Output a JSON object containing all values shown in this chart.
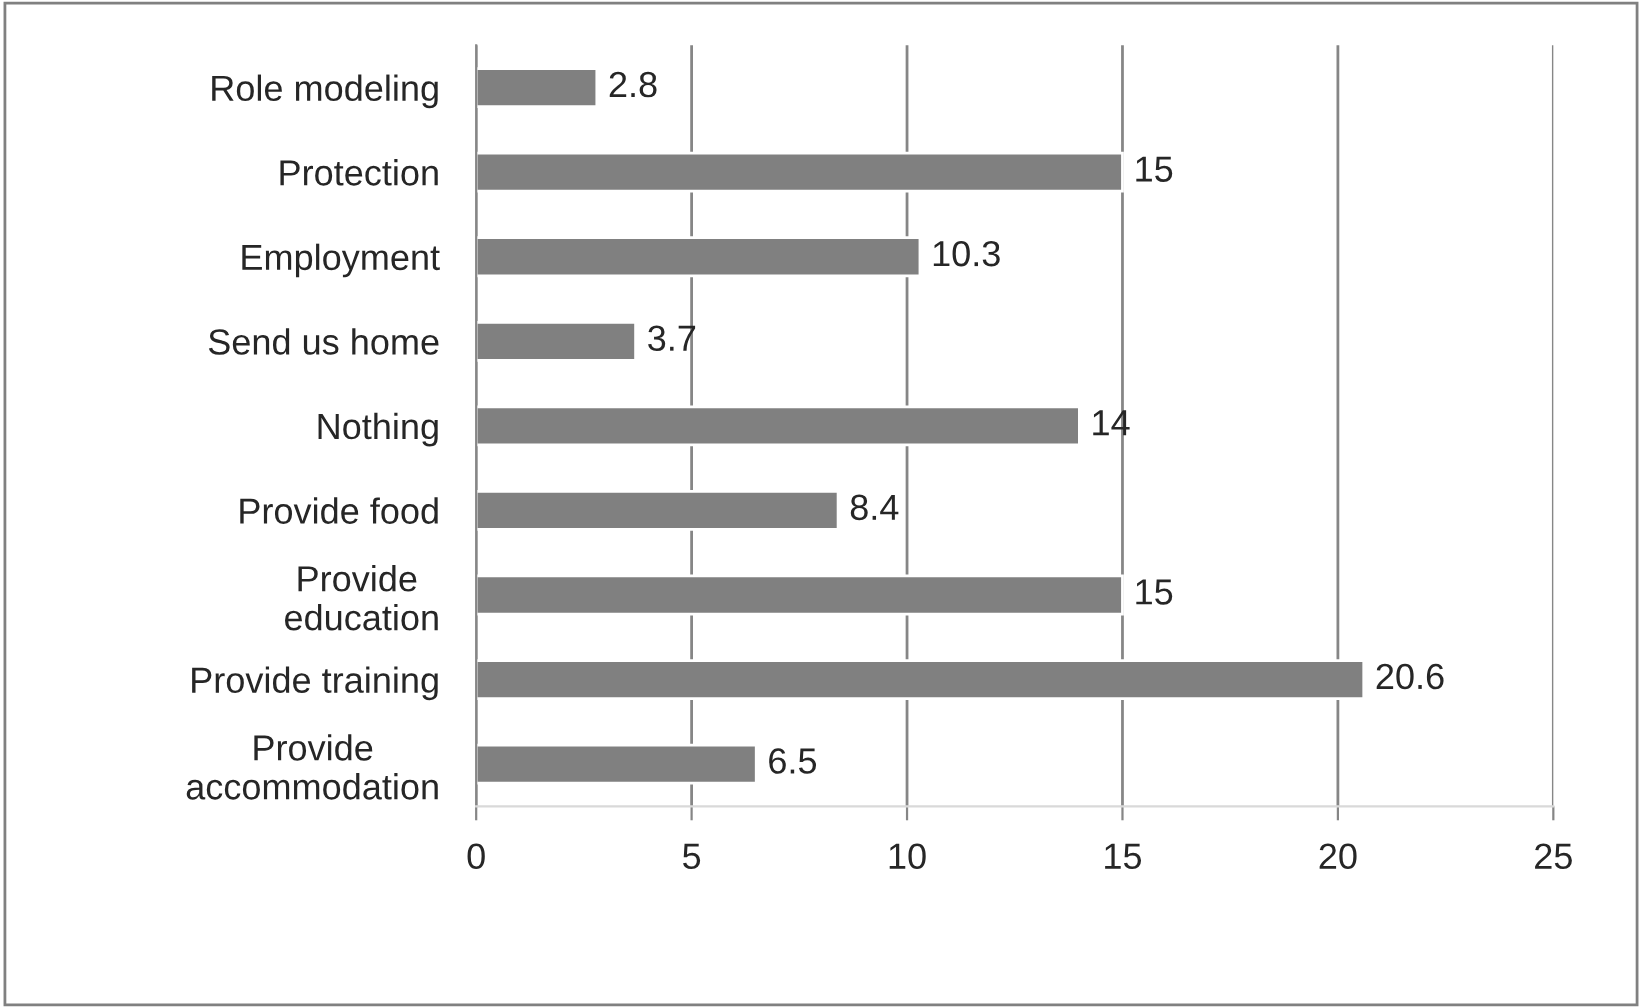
{
  "chart_data": {
    "type": "bar",
    "orientation": "horizontal",
    "categories": [
      "Role modeling",
      "Protection",
      "Employment",
      "Send us home",
      "Nothing",
      "Provide food",
      "Provide \neducation",
      "Provide training",
      "Provide\naccommodation"
    ],
    "values": [
      2.8,
      15,
      10.3,
      3.7,
      14,
      8.4,
      15,
      20.6,
      6.5
    ],
    "color": "#808080",
    "xlim": [
      0,
      25
    ],
    "xticks": [
      0,
      5,
      10,
      15,
      20,
      25
    ],
    "grid": "x",
    "data_labels": true
  }
}
